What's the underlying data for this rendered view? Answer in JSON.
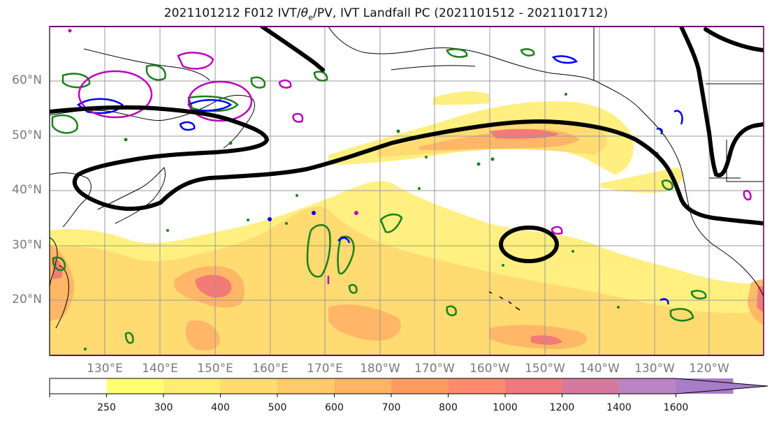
{
  "title": "2021101212 F012 IVT/θe/PV, IVT Landfall PC (2021101512 - 2021101712)",
  "title_parts": {
    "prefix": "2021101212 F012 IVT/",
    "theta": "θ",
    "sub": "e",
    "suffix": "/PV, IVT Landfall PC (2021101512 - 2021101712)"
  },
  "map": {
    "lat_labels": [
      "60°N",
      "50°N",
      "40°N",
      "30°N",
      "20°N"
    ],
    "lon_labels": [
      "130°E",
      "140°E",
      "150°E",
      "160°E",
      "170°E",
      "180°W",
      "170°W",
      "160°W",
      "150°W",
      "140°W",
      "130°W",
      "120°W"
    ],
    "contour_colors": {
      "principal_component": "#000000",
      "theta_e": "#1a7f1a",
      "pv_blue": "#0000ee",
      "pv_magenta": "#bb00bb",
      "coastline": "#000000",
      "gridline": "#9a9a9a"
    }
  },
  "colorbar": {
    "tick_labels": [
      "250",
      "300",
      "400",
      "500",
      "600",
      "700",
      "800",
      "1000",
      "1200",
      "1400",
      "1600"
    ],
    "colors": [
      "#ffffff",
      "#ffff73",
      "#ffec73",
      "#ffdb70",
      "#ffca6b",
      "#ffb466",
      "#ff9c61",
      "#ff8a6e",
      "#ee7a7e",
      "#d57a9e",
      "#bb84c4",
      "#a87dc8"
    ]
  }
}
